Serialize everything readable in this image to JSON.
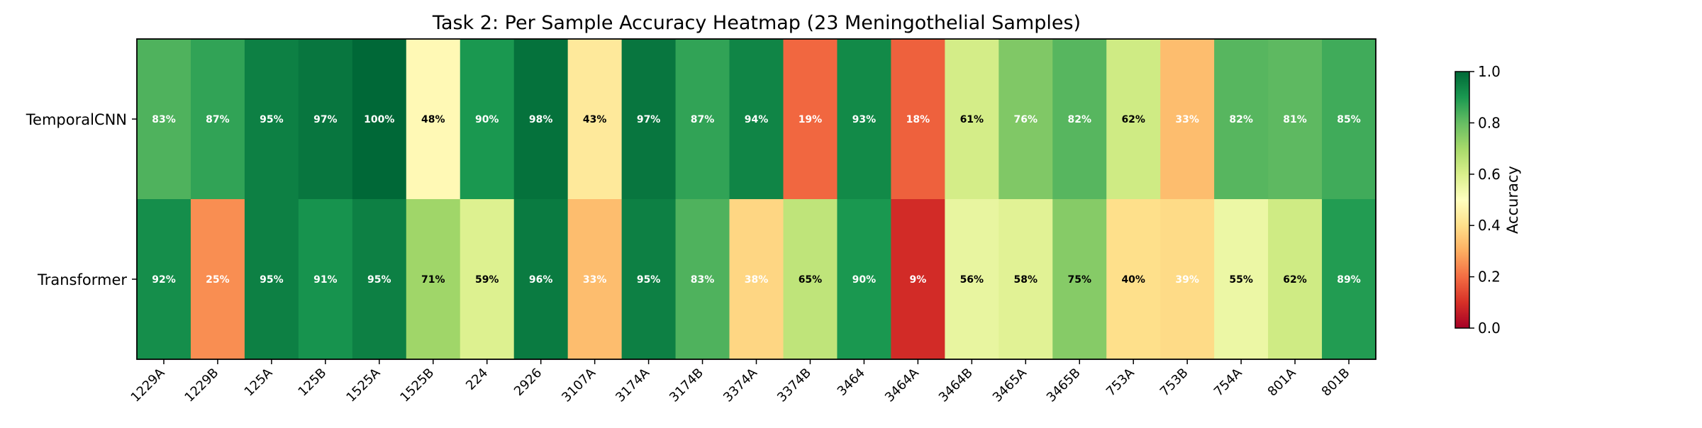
{
  "chart_data": {
    "type": "heatmap",
    "title": "Task 2: Per Sample Accuracy Heatmap (23 Meningothelial Samples)",
    "rows": [
      "TemporalCNN",
      "Transformer"
    ],
    "columns": [
      "1229A",
      "1229B",
      "125A",
      "125B",
      "1525A",
      "1525B",
      "224",
      "2926",
      "3107A",
      "3174A",
      "3174B",
      "3374A",
      "3374B",
      "3464",
      "3464A",
      "3464B",
      "3465A",
      "3465B",
      "753A",
      "753B",
      "754A",
      "801A",
      "801B"
    ],
    "values": [
      [
        0.83,
        0.87,
        0.95,
        0.97,
        1.0,
        0.48,
        0.9,
        0.98,
        0.43,
        0.97,
        0.87,
        0.94,
        0.19,
        0.93,
        0.18,
        0.61,
        0.76,
        0.82,
        0.62,
        0.33,
        0.82,
        0.81,
        0.85
      ],
      [
        0.92,
        0.25,
        0.95,
        0.91,
        0.95,
        0.71,
        0.59,
        0.96,
        0.33,
        0.95,
        0.83,
        0.38,
        0.65,
        0.9,
        0.09,
        0.56,
        0.58,
        0.75,
        0.4,
        0.39,
        0.55,
        0.62,
        0.89
      ]
    ],
    "cell_labels": [
      [
        "83%",
        "87%",
        "95%",
        "97%",
        "100%",
        "48%",
        "90%",
        "98%",
        "43%",
        "97%",
        "87%",
        "94%",
        "19%",
        "93%",
        "18%",
        "61%",
        "76%",
        "82%",
        "62%",
        "33%",
        "82%",
        "81%",
        "85%"
      ],
      [
        "92%",
        "25%",
        "95%",
        "91%",
        "95%",
        "71%",
        "59%",
        "96%",
        "33%",
        "95%",
        "83%",
        "38%",
        "65%",
        "90%",
        "9%",
        "56%",
        "58%",
        "75%",
        "40%",
        "39%",
        "55%",
        "62%",
        "89%"
      ]
    ],
    "colorbar": {
      "label": "Accuracy",
      "range": [
        0.0,
        1.0
      ],
      "ticks": [
        "0.0",
        "0.2",
        "0.4",
        "0.6",
        "0.8",
        "1.0"
      ],
      "colormap": "RdYlGn"
    }
  }
}
